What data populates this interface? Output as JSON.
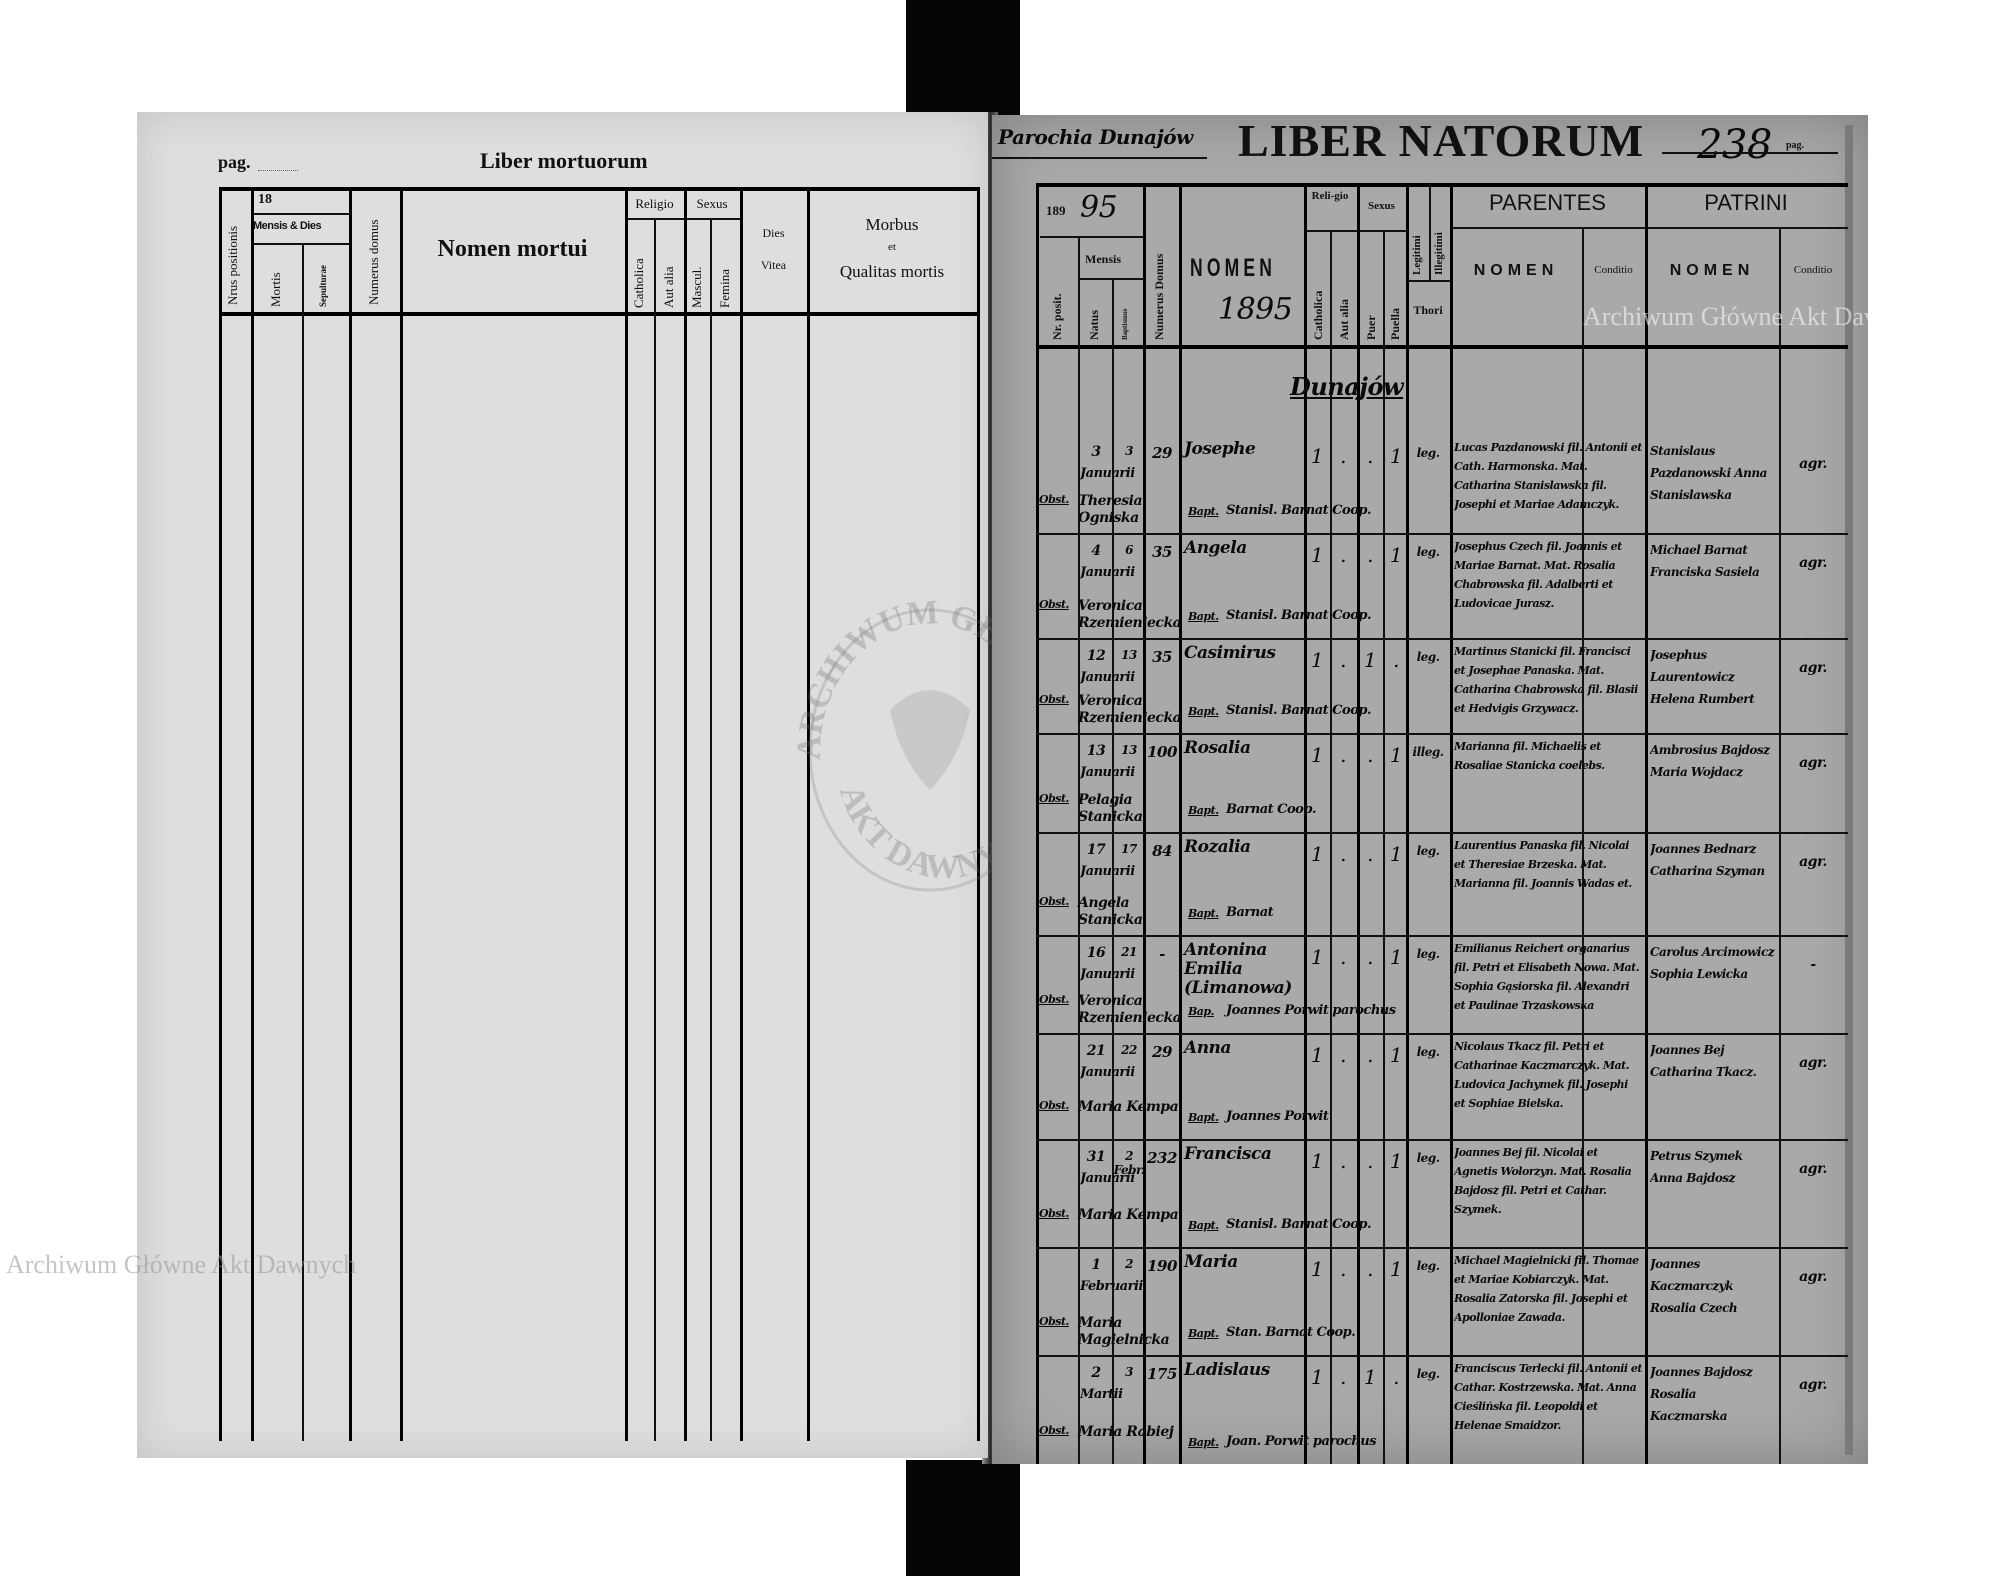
{
  "watermark": {
    "text": "Archiwum Główne Akt Dawnych",
    "stamp_top": "ARCHIWUM GŁÓWNE",
    "stamp_bottom": "AKT DAWNYCH"
  },
  "left_page": {
    "page_label": "pag.",
    "title": "Liber mortuorum",
    "headers": {
      "nrus": "Nrus positionis",
      "year": "18",
      "mensis_dies": "Mensis & Dies",
      "mortis": "Mortis",
      "sepulturae": "Sepulturae",
      "numerus_domus": "Numerus domus",
      "nomen": "Nomen mortui",
      "religio": "Religio",
      "catholica": "Catholica",
      "aut_alia": "Aut alia",
      "sexus": "Sexus",
      "mascul": "Mascul.",
      "femina": "Femina",
      "dies": "Dies",
      "vitea": "Vitea",
      "morbus": "Morbus",
      "et": "et",
      "qualitas": "Qualitas mortis"
    }
  },
  "right_page": {
    "parish": "Parochia Dunajów",
    "title": "LIBER NATORUM",
    "page_number": "238",
    "page_label": "pag.",
    "year_prefix": "189",
    "year_suffix": "95",
    "year_full": "1895",
    "section": "Dunajów",
    "headers": {
      "nr_posit": "Nr. posit.",
      "mensis": "Mensis",
      "natus": "Natus",
      "baptismus": "Baptismus",
      "numerus_domus": "Numerus Domus",
      "nomen": "NOMEN",
      "religio": "Reli-gio",
      "catholica": "Catholica",
      "aut_alia": "Aut alia",
      "sexus": "Sexus",
      "puer": "Puer",
      "puella": "Puella",
      "legitimi": "Legitimi",
      "illegitimi": "Illegitimi",
      "thori": "Thori",
      "parentes": "PARENTES",
      "patrini": "PATRINI",
      "parentes_nomen": "NOMEN",
      "parentes_conditio": "Conditio",
      "patrini_nomen": "NOMEN",
      "patrini_conditio": "Conditio"
    },
    "entries": [
      {
        "natus": "3",
        "baptismus": "3",
        "mensis": "Januarii",
        "domus": "29",
        "nomen": "Josephe",
        "marks": [
          "1",
          ".",
          ".",
          "1"
        ],
        "legit": "leg.",
        "obst_label": "Obst.",
        "obstetrix": "Theresia Ogniska",
        "bapt_label": "Bapt.",
        "baptizans": "Stanisl. Barnat Coop.",
        "parentes": "Lucas Pazdanowski fil. Antonii et Cath. Harmonska. Mat. Catharina Stanislawska fil. Josephi et Mariae Adamczyk.",
        "patrini": "Stanislaus Pazdanowski Anna Stanislawska",
        "conditio": "agr."
      },
      {
        "natus": "4",
        "baptismus": "6",
        "mensis": "Januarii",
        "domus": "35",
        "nomen": "Angela",
        "marks": [
          "1",
          ".",
          ".",
          "1"
        ],
        "legit": "leg.",
        "obst_label": "Obst.",
        "obstetrix": "Veronica Rzemieniecka",
        "bapt_label": "Bapt.",
        "baptizans": "Stanisl. Barnat Coop.",
        "parentes": "Josephus Czech fil. Joannis et Mariae Barnat. Mat. Rosalia Chabrowska fil. Adalberti et Ludovicae Jurasz.",
        "patrini": "Michael Barnat Franciska Sasiela",
        "conditio": "agr."
      },
      {
        "natus": "12",
        "baptismus": "13",
        "mensis": "Januarii",
        "domus": "35",
        "nomen": "Casimirus",
        "marks": [
          "1",
          ".",
          "1",
          "."
        ],
        "legit": "leg.",
        "obst_label": "Obst.",
        "obstetrix": "Veronica Rzemieniecka",
        "bapt_label": "Bapt.",
        "baptizans": "Stanisl. Barnat Coop.",
        "parentes": "Martinus Stanicki fil. Francisci et Josephae Panaska. Mat. Catharina Chabrowska fil. Blasii et Hedvigis Grzywacz.",
        "patrini": "Josephus Laurentowicz Helena Rumbert",
        "conditio": "agr."
      },
      {
        "natus": "13",
        "baptismus": "13",
        "mensis": "Januarii",
        "domus": "100",
        "nomen": "Rosalia",
        "marks": [
          "1",
          ".",
          ".",
          "1"
        ],
        "legit": "illeg.",
        "obst_label": "Obst.",
        "obstetrix": "Pelagia Stanicka",
        "bapt_label": "Bapt.",
        "baptizans": "Barnat Coop.",
        "parentes": "Marianna fil. Michaelis et Rosaliae Stanicka coelebs.",
        "patrini": "Ambrosius Bajdosz Maria Wojdacz",
        "conditio": "agr."
      },
      {
        "natus": "17",
        "baptismus": "17",
        "mensis": "Januarii",
        "domus": "84",
        "nomen": "Rozalia",
        "marks": [
          "1",
          ".",
          ".",
          "1"
        ],
        "legit": "leg.",
        "obst_label": "Obst.",
        "obstetrix": "Angela Stanicka",
        "bapt_label": "Bapt.",
        "baptizans": "Barnat",
        "parentes": "Laurentius Panaska fil. Nicolai et Theresiae Brzeska. Mat. Marianna fil. Joannis Wadas et.",
        "patrini": "Joannes Bednarz Catharina Szyman",
        "conditio": "agr."
      },
      {
        "natus": "16",
        "baptismus": "21",
        "mensis": "Januarii",
        "domus": "-",
        "nomen": "Antonina Emilia (Limanowa)",
        "marks": [
          "1",
          ".",
          ".",
          "1"
        ],
        "legit": "leg.",
        "obst_label": "Obst.",
        "obstetrix": "Veronica Rzemieniecka",
        "bapt_label": "Bap.",
        "baptizans": "Joannes Porwit parochus",
        "parentes": "Emilianus Reichert organarius fil. Petri et Elisabeth Nowa. Mat. Sophia Gąsiorska fil. Alexandri et Paulinae Trzaskowska",
        "patrini": "Carolus Arcimowicz Sophia Lewicka",
        "conditio": "-"
      },
      {
        "natus": "21",
        "baptismus": "22",
        "mensis": "Januarii",
        "domus": "29",
        "nomen": "Anna",
        "marks": [
          "1",
          ".",
          ".",
          "1"
        ],
        "legit": "leg.",
        "obst_label": "Obst.",
        "obstetrix": "Maria Kempa",
        "bapt_label": "Bapt.",
        "baptizans": "Joannes Porwit",
        "parentes": "Nicolaus Tkacz fil. Petri et Catharinae Kaczmarczyk. Mat. Ludovica Jachymek fil. Josephi et Sophiae Bielska.",
        "patrini": "Joannes Bej Catharina Tkacz.",
        "conditio": "agr."
      },
      {
        "natus": "31",
        "baptismus": "2 Febr.",
        "mensis": "Januarii",
        "domus": "232",
        "nomen": "Francisca",
        "marks": [
          "1",
          ".",
          ".",
          "1"
        ],
        "legit": "leg.",
        "obst_label": "Obst.",
        "obstetrix": "Maria Kempa",
        "bapt_label": "Bapt.",
        "baptizans": "Stanisl. Barnat Coop.",
        "parentes": "Joannes Bej fil. Nicolai et Agnetis Wolorzyn. Mat. Rosalia Bajdosz fil. Petri et Cathar. Szymek.",
        "patrini": "Petrus Szymek Anna Bajdosz",
        "conditio": "agr."
      },
      {
        "natus": "1",
        "baptismus": "2",
        "mensis": "Februarii",
        "domus": "190",
        "nomen": "Maria",
        "marks": [
          "1",
          ".",
          ".",
          "1"
        ],
        "legit": "leg.",
        "obst_label": "Obst.",
        "obstetrix": "Maria Magielnicka",
        "bapt_label": "Bapt.",
        "baptizans": "Stan. Barnat Coop.",
        "parentes": "Michael Magielnicki fil. Thomae et Mariae Kobiarczyk. Mat. Rosalia Zatorska fil. Josephi et Apolloniae Zawada.",
        "patrini": "Joannes Kaczmarczyk Rosalia Czech",
        "conditio": "agr."
      },
      {
        "natus": "2",
        "baptismus": "3",
        "mensis": "Martii",
        "domus": "175",
        "nomen": "Ladislaus",
        "marks": [
          "1",
          ".",
          "1",
          "."
        ],
        "legit": "leg.",
        "obst_label": "Obst.",
        "obstetrix": "Maria Rabiej",
        "bapt_label": "Bapt.",
        "baptizans": "Joan. Porwit parochus",
        "parentes": "Franciscus Terlecki fil. Antonii et Cathar. Kostrzewska. Mat. Anna Cieślińska fil. Leopoldi et Helenae Smaidzor.",
        "patrini": "Joannes Bajdosz Rosalia Kaczmarska",
        "conditio": "agr."
      }
    ]
  }
}
